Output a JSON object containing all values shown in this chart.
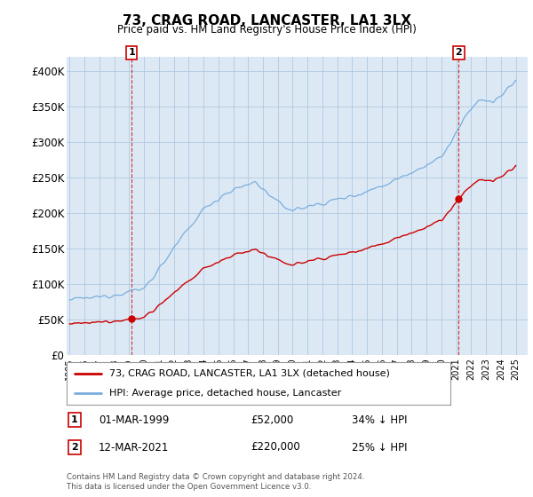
{
  "title": "73, CRAG ROAD, LANCASTER, LA1 3LX",
  "subtitle": "Price paid vs. HM Land Registry's House Price Index (HPI)",
  "hpi_label": "HPI: Average price, detached house, Lancaster",
  "property_label": "73, CRAG ROAD, LANCASTER, LA1 3LX (detached house)",
  "sale1_date": "01-MAR-1999",
  "sale1_price": 52000,
  "sale1_pct": "34% ↓ HPI",
  "sale2_date": "12-MAR-2021",
  "sale2_price": 220000,
  "sale2_pct": "25% ↓ HPI",
  "footnote": "Contains HM Land Registry data © Crown copyright and database right 2024.\nThis data is licensed under the Open Government Licence v3.0.",
  "hpi_color": "#7aaddc",
  "property_color": "#cc0000",
  "sale_dot_color": "#cc0000",
  "background_color": "#ffffff",
  "plot_bg_color": "#dce9f5",
  "grid_color": "#b0c8e0",
  "ylim": [
    0,
    420000
  ],
  "yticks": [
    0,
    50000,
    100000,
    150000,
    200000,
    250000,
    300000,
    350000,
    400000
  ],
  "t1": 1999.17,
  "t2": 2021.17,
  "p1": 52000,
  "p2": 220000
}
